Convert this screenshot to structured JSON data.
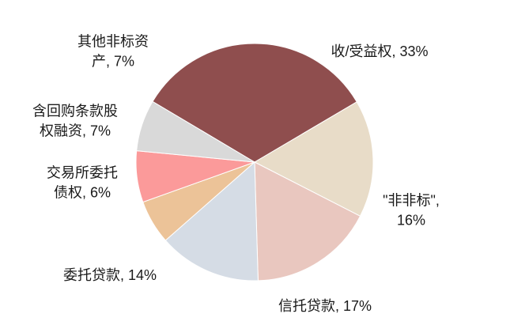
{
  "chart_data": {
    "type": "pie",
    "title": "",
    "slices": [
      {
        "label_lines": [
          "收/受益权, 33%"
        ],
        "value": 33,
        "color": "#8f4e4e"
      },
      {
        "label_lines": [
          "\"非非标\",",
          "16%"
        ],
        "value": 16,
        "color": "#e8dcc8"
      },
      {
        "label_lines": [
          "信托贷款, 17%"
        ],
        "value": 17,
        "color": "#e9c7bf"
      },
      {
        "label_lines": [
          "委托贷款, 14%"
        ],
        "value": 14,
        "color": "#d5dce5"
      },
      {
        "label_lines": [
          "交易所委托",
          "债权, 6%"
        ],
        "value": 6,
        "color": "#ecc398"
      },
      {
        "label_lines": [
          "含回购条款股",
          "权融资, 7%"
        ],
        "value": 7,
        "color": "#fb9a9a"
      },
      {
        "label_lines": [
          "其他非标资",
          "产, 7%"
        ],
        "value": 7,
        "color": "#d9d9d9"
      }
    ]
  }
}
